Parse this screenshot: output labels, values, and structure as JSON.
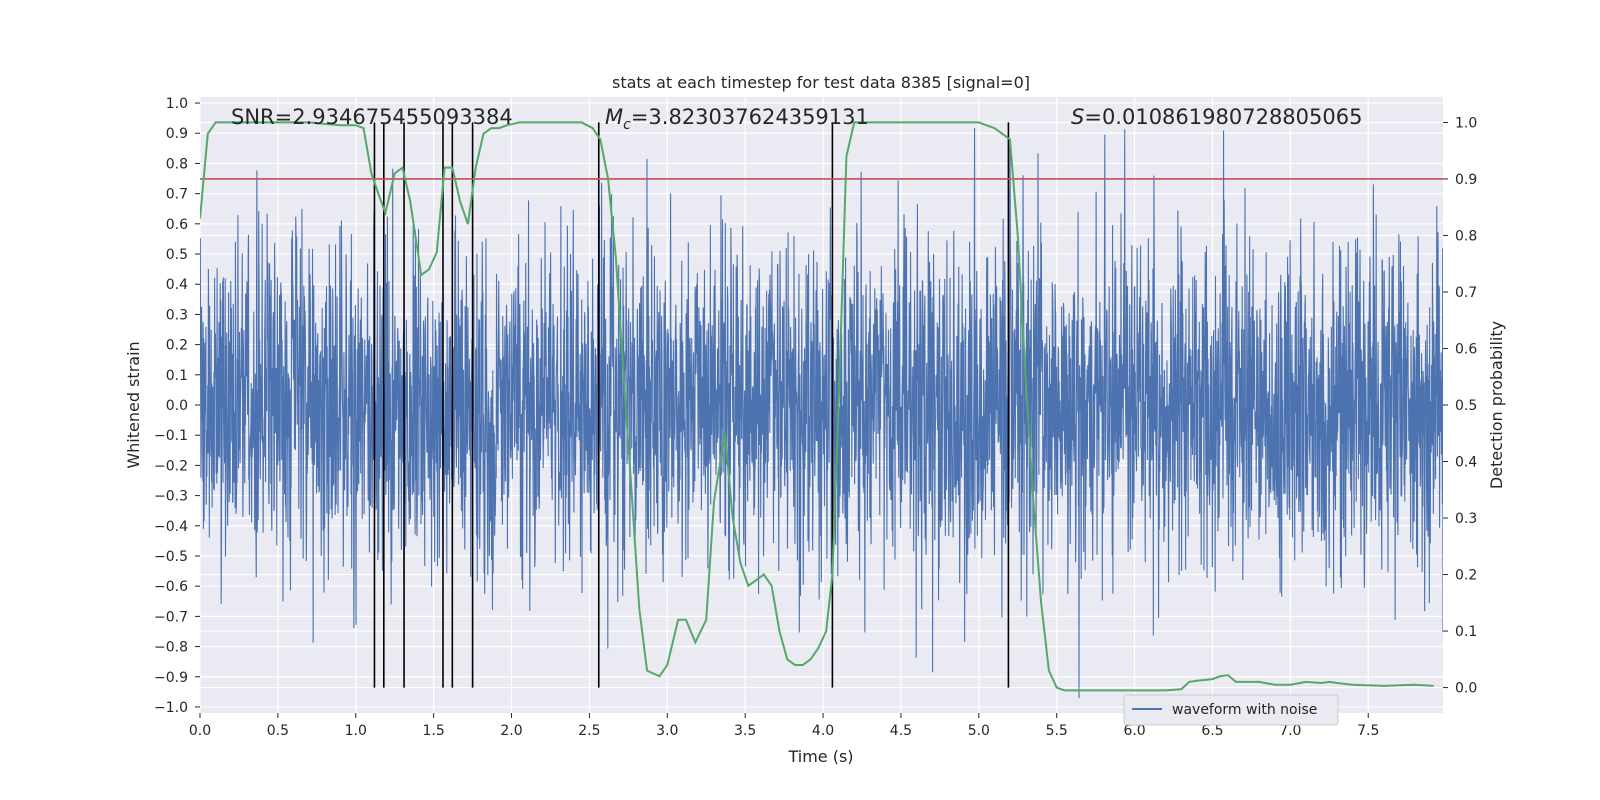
{
  "chart_data": {
    "type": "line",
    "title": "stats at each timestep for test data 8385 [signal=0]",
    "xlabel": "Time (s)",
    "ylabel": "Whitened strain",
    "y2label": "Detection probability",
    "xlim": [
      0.0,
      7.98
    ],
    "ylim": [
      -1.02,
      1.02
    ],
    "y2lim": [
      -0.045,
      1.045
    ],
    "x_ticks": [
      0.0,
      0.5,
      1.0,
      1.5,
      2.0,
      2.5,
      3.0,
      3.5,
      4.0,
      4.5,
      5.0,
      5.5,
      6.0,
      6.5,
      7.0,
      7.5
    ],
    "x_tick_labels": [
      "0.0",
      "0.5",
      "1.0",
      "1.5",
      "2.0",
      "2.5",
      "3.0",
      "3.5",
      "4.0",
      "4.5",
      "5.0",
      "5.5",
      "6.0",
      "6.5",
      "7.0",
      "7.5"
    ],
    "y_ticks": [
      -1.0,
      -0.9,
      -0.8,
      -0.7,
      -0.6,
      -0.5,
      -0.4,
      -0.3,
      -0.2,
      -0.1,
      0.0,
      0.1,
      0.2,
      0.3,
      0.4,
      0.5,
      0.6,
      0.7,
      0.8,
      0.9,
      1.0
    ],
    "y_tick_labels": [
      "−1.0",
      "−0.9",
      "−0.8",
      "−0.7",
      "−0.6",
      "−0.5",
      "−0.4",
      "−0.3",
      "−0.2",
      "−0.1",
      "0.0",
      "0.1",
      "0.2",
      "0.3",
      "0.4",
      "0.5",
      "0.6",
      "0.7",
      "0.8",
      "0.9",
      "1.0"
    ],
    "y2_ticks": [
      0.0,
      0.1,
      0.2,
      0.3,
      0.4,
      0.5,
      0.6,
      0.7,
      0.8,
      0.9,
      1.0
    ],
    "y2_tick_labels": [
      "0.0",
      "0.1",
      "0.2",
      "0.3",
      "0.4",
      "0.5",
      "0.6",
      "0.7",
      "0.8",
      "0.9",
      "1.0"
    ],
    "grid": true,
    "legend": {
      "placement": "bottom-right",
      "entries": [
        "waveform with noise"
      ]
    },
    "annotations": {
      "snr": {
        "label": "SNR=",
        "value": "2.934675455093384"
      },
      "mc": {
        "symbol": "M",
        "subscript": "c",
        "value": "=3.823037624359131"
      },
      "s": {
        "symbol": "S",
        "value": "=0.010861980728805065"
      }
    },
    "threshold": {
      "axis": "y2",
      "value": 0.9
    },
    "event_lines_x": [
      1.12,
      1.18,
      1.31,
      1.56,
      1.62,
      1.75,
      2.56,
      4.06,
      5.19
    ],
    "series": [
      {
        "name": "waveform with noise",
        "axis": "y",
        "color": "#4c72b0",
        "kind": "noise",
        "sample_count": 4000,
        "spread": 0.27,
        "max_abs": 1.0
      },
      {
        "axis": "y2",
        "color": "#55a868",
        "x": [
          0.0,
          0.05,
          0.1,
          0.2,
          0.3,
          0.5,
          0.7,
          0.9,
          1.0,
          1.05,
          1.1,
          1.15,
          1.19,
          1.25,
          1.3,
          1.35,
          1.42,
          1.47,
          1.52,
          1.57,
          1.62,
          1.67,
          1.72,
          1.77,
          1.82,
          1.87,
          1.92,
          1.97,
          2.05,
          2.15,
          2.25,
          2.35,
          2.45,
          2.52,
          2.57,
          2.62,
          2.67,
          2.72,
          2.77,
          2.82,
          2.87,
          2.95,
          3.0,
          3.07,
          3.12,
          3.18,
          3.25,
          3.3,
          3.37,
          3.42,
          3.47,
          3.52,
          3.57,
          3.62,
          3.67,
          3.72,
          3.77,
          3.82,
          3.87,
          3.92,
          3.97,
          4.02,
          4.06,
          4.1,
          4.15,
          4.2,
          4.25,
          4.3,
          4.4,
          4.5,
          4.6,
          4.7,
          4.8,
          4.9,
          5.0,
          5.05,
          5.1,
          5.15,
          5.2,
          5.25,
          5.3,
          5.35,
          5.4,
          5.45,
          5.5,
          5.55,
          5.6,
          5.7,
          5.8,
          6.0,
          6.2,
          6.3,
          6.35,
          6.4,
          6.5,
          6.55,
          6.6,
          6.65,
          6.8,
          6.9,
          7.0,
          7.1,
          7.2,
          7.25,
          7.3,
          7.4,
          7.6,
          7.8,
          7.92
        ],
        "values": [
          0.83,
          0.98,
          1.0,
          1.0,
          1.0,
          1.0,
          1.0,
          0.995,
          0.995,
          0.99,
          0.91,
          0.87,
          0.84,
          0.91,
          0.92,
          0.86,
          0.73,
          0.74,
          0.77,
          0.92,
          0.92,
          0.86,
          0.82,
          0.92,
          0.98,
          0.99,
          0.99,
          0.995,
          1.0,
          1.0,
          1.0,
          1.0,
          1.0,
          0.99,
          0.97,
          0.9,
          0.76,
          0.55,
          0.35,
          0.14,
          0.03,
          0.02,
          0.04,
          0.12,
          0.12,
          0.08,
          0.12,
          0.33,
          0.45,
          0.3,
          0.22,
          0.18,
          0.19,
          0.2,
          0.18,
          0.1,
          0.05,
          0.04,
          0.04,
          0.05,
          0.07,
          0.1,
          0.2,
          0.5,
          0.94,
          1.0,
          1.0,
          1.0,
          1.0,
          1.0,
          1.0,
          1.0,
          1.0,
          1.0,
          1.0,
          0.995,
          0.99,
          0.98,
          0.97,
          0.8,
          0.55,
          0.33,
          0.15,
          0.03,
          0.0,
          -0.005,
          -0.005,
          -0.005,
          -0.005,
          -0.005,
          -0.005,
          -0.003,
          0.01,
          0.012,
          0.015,
          0.02,
          0.022,
          0.01,
          0.01,
          0.005,
          0.005,
          0.01,
          0.008,
          0.01,
          0.008,
          0.005,
          0.003,
          0.005,
          0.003
        ]
      }
    ],
    "colors": {
      "plot_bg": "#eaeaf2",
      "grid": "#ffffff",
      "threshold": "#c44e52",
      "event_line": "#000000"
    }
  }
}
